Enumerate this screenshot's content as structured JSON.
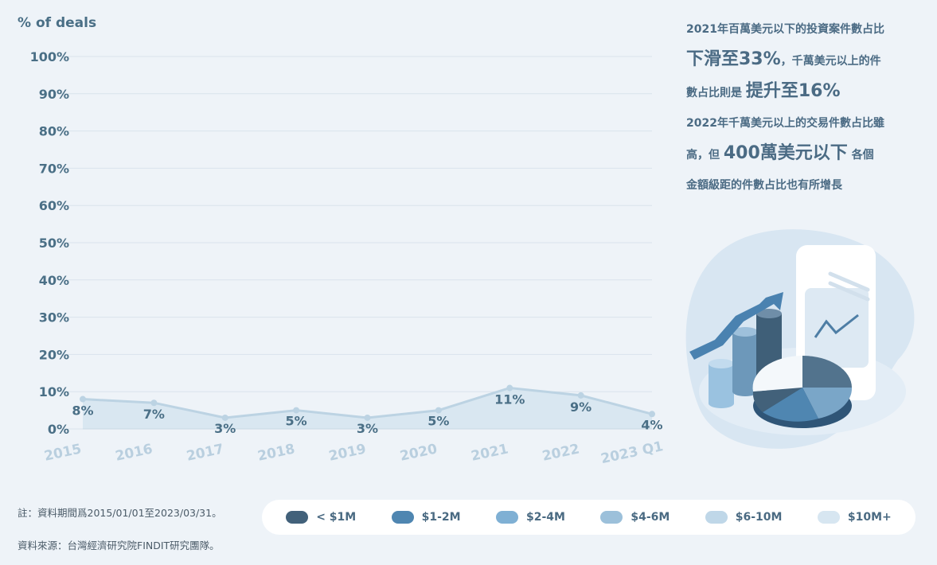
{
  "chart_data": {
    "type": "area",
    "ylabel": "% of deals",
    "y_ticks": [
      "0%",
      "10%",
      "20%",
      "30%",
      "40%",
      "50%",
      "60%",
      "70%",
      "80%",
      "90%",
      "100%"
    ],
    "ylim": [
      0,
      100
    ],
    "grid": true,
    "categories": [
      "2015",
      "2016",
      "2017",
      "2018",
      "2019",
      "2020",
      "2021",
      "2022",
      "2023 Q1"
    ],
    "series": [
      {
        "values": [
          8,
          7,
          3,
          5,
          3,
          5,
          11,
          9,
          4
        ]
      }
    ],
    "data_labels": [
      "8%",
      "7%",
      "3%",
      "5%",
      "3%",
      "5%",
      "11%",
      "9%",
      "4%"
    ],
    "legend": {
      "placement": "bottom",
      "entries": [
        {
          "label": "< $1M",
          "color": "#42617a"
        },
        {
          "label": "$1-2M",
          "color": "#4f86b1"
        },
        {
          "label": "$2-4M",
          "color": "#7fb0d4"
        },
        {
          "label": "$4-6M",
          "color": "#9cc0da"
        },
        {
          "label": "$6-10M",
          "color": "#bfd7e8"
        },
        {
          "label": "$10M+",
          "color": "#d7e6f1"
        }
      ]
    }
  },
  "annotation": {
    "line1": "2021年百萬美元以下的投資案件數占比",
    "line2_big": "下滑至33%",
    "line2_rest": "，千萬美元以上的件",
    "line3": "數占比則是",
    "line3_big": "提升至16%",
    "line4": "2022年千萬美元以上的交易件數占比雖",
    "line5_a": "高，但",
    "line5_big": "400萬美元以下",
    "line5_b": "各個",
    "line6": "金額級距的件數占比也有所增長"
  },
  "footer": {
    "note": "註：資料期間爲2015/01/01至2023/03/31。",
    "source": "資料來源：台灣經濟研究院FINDIT研究團隊。"
  },
  "colors": {
    "background": "#eef3f8",
    "area_fill": "#d6e5ef",
    "line": "#bcd3e3",
    "grid": "#d9e3ec"
  }
}
